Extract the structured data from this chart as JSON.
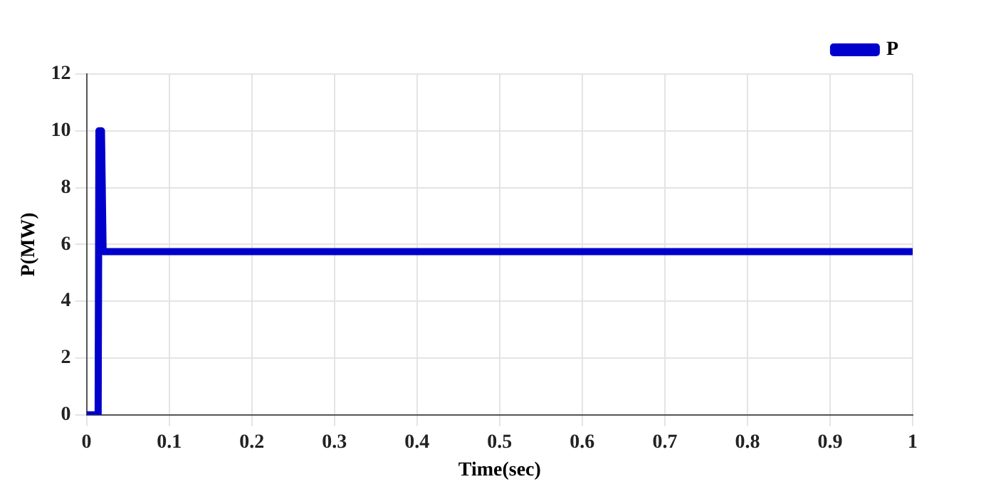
{
  "chart_data": {
    "type": "line",
    "xlabel": "Time(sec)",
    "ylabel": "P(MW)",
    "xlim": [
      0,
      1
    ],
    "xticks": [
      0,
      0.1,
      0.2,
      0.3,
      0.4,
      0.5,
      0.6,
      0.7,
      0.8,
      0.9,
      1
    ],
    "ylim": [
      0,
      12
    ],
    "yticks": [
      0,
      2,
      4,
      6,
      8,
      10,
      12
    ],
    "grid": true,
    "legend": "top right",
    "marker": "none",
    "line_style": "solid",
    "series": [
      {
        "name": "P",
        "color": "#0000cc",
        "x": [
          0,
          0.014,
          0.015,
          0.018,
          0.02,
          1
        ],
        "values": [
          0,
          0,
          10,
          10,
          5.75,
          5.75
        ]
      }
    ]
  }
}
